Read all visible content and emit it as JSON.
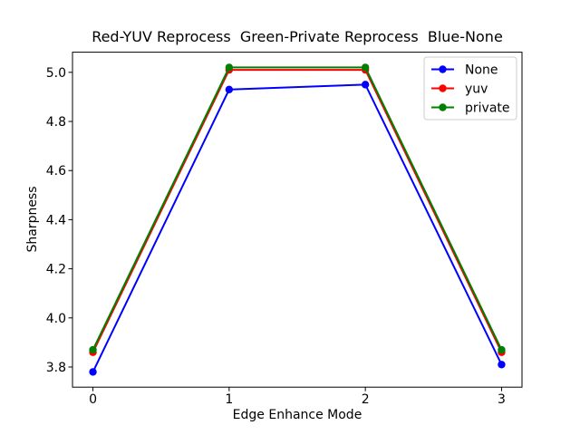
{
  "chart_data": {
    "type": "line",
    "title": "Red-YUV Reprocess  Green-Private Reprocess  Blue-None",
    "xlabel": "Edge Enhance Mode",
    "ylabel": "Sharpness",
    "x": [
      0,
      1,
      2,
      3
    ],
    "series": [
      {
        "name": "None",
        "color": "#0000ff",
        "marker": "circle",
        "values": [
          3.78,
          4.93,
          4.95,
          3.81
        ]
      },
      {
        "name": "yuv",
        "color": "#ff0000",
        "marker": "circle",
        "values": [
          3.86,
          5.01,
          5.01,
          3.86
        ]
      },
      {
        "name": "private",
        "color": "#008000",
        "marker": "circle",
        "values": [
          3.87,
          5.02,
          5.02,
          3.87
        ]
      }
    ],
    "xticks": [
      0,
      1,
      2,
      3
    ],
    "yticks": [
      3.8,
      4.0,
      4.2,
      4.4,
      4.6,
      4.8,
      5.0
    ],
    "xlim": [
      -0.15,
      3.15
    ],
    "ylim": [
      3.718,
      5.082
    ],
    "grid": false,
    "legend": {
      "position": "upper right",
      "entries": [
        "None",
        "yuv",
        "private"
      ]
    },
    "background": "#ffffff",
    "text_color": "#000000",
    "legend_edge_color": "#cccccc"
  }
}
